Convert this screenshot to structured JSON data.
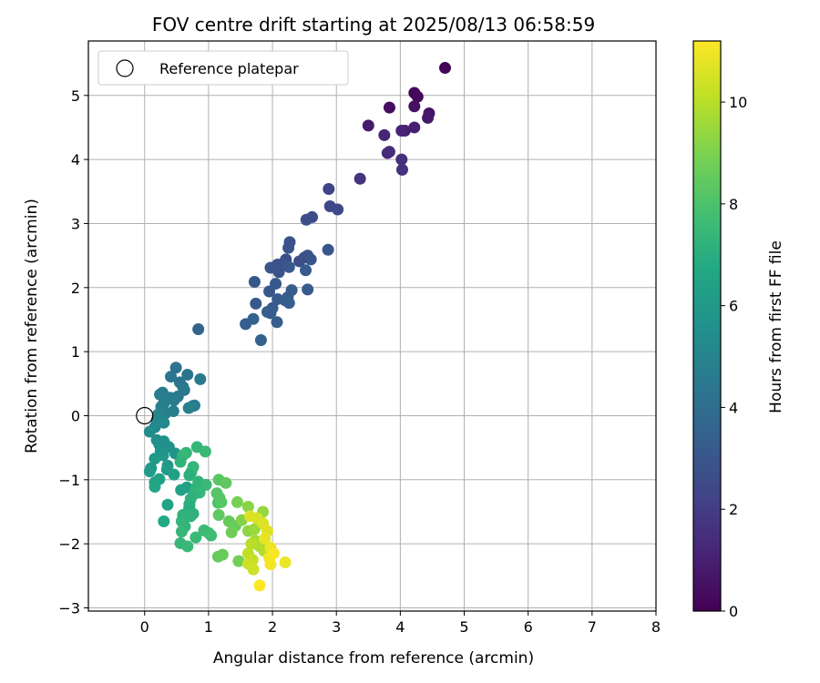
{
  "chart_data": {
    "type": "scatter",
    "title": "FOV centre drift starting at 2025/08/13 06:58:59",
    "xlabel": "Angular distance from reference (arcmin)",
    "ylabel": "Rotation from reference (arcmin)",
    "xlim": [
      -0.88,
      8.0
    ],
    "ylim": [
      -3.05,
      5.85
    ],
    "xticks": [
      0,
      1,
      2,
      3,
      4,
      5,
      6,
      7,
      8
    ],
    "yticks": [
      -3,
      -2,
      -1,
      0,
      1,
      2,
      3,
      4,
      5
    ],
    "grid": true,
    "legend": {
      "placement": "top-left",
      "entries": [
        "Reference platepar"
      ]
    },
    "reference_point": {
      "x": 0,
      "y": 0
    },
    "colorbar": {
      "label": "Hours from first FF file",
      "min": 0,
      "max": 11.2,
      "ticks": [
        0,
        2,
        4,
        6,
        8,
        10
      ],
      "colormap": "viridis"
    },
    "points": [
      {
        "x": 4.7,
        "y": 5.43,
        "c": 0.1
      },
      {
        "x": 4.22,
        "y": 5.04,
        "c": 0.2
      },
      {
        "x": 4.27,
        "y": 4.98,
        "c": 0.3
      },
      {
        "x": 3.83,
        "y": 4.81,
        "c": 0.4
      },
      {
        "x": 4.22,
        "y": 4.83,
        "c": 0.5
      },
      {
        "x": 4.45,
        "y": 4.72,
        "c": 0.6
      },
      {
        "x": 4.43,
        "y": 4.65,
        "c": 0.7
      },
      {
        "x": 3.5,
        "y": 4.53,
        "c": 0.8
      },
      {
        "x": 4.07,
        "y": 4.45,
        "c": 0.9
      },
      {
        "x": 4.22,
        "y": 4.5,
        "c": 1.0
      },
      {
        "x": 4.02,
        "y": 4.45,
        "c": 1.1
      },
      {
        "x": 3.75,
        "y": 4.38,
        "c": 1.2
      },
      {
        "x": 3.8,
        "y": 4.1,
        "c": 1.3
      },
      {
        "x": 3.83,
        "y": 4.12,
        "c": 1.4
      },
      {
        "x": 4.02,
        "y": 4.0,
        "c": 1.5
      },
      {
        "x": 4.03,
        "y": 3.84,
        "c": 1.6
      },
      {
        "x": 3.37,
        "y": 3.7,
        "c": 1.7
      },
      {
        "x": 2.88,
        "y": 3.54,
        "c": 2.3
      },
      {
        "x": 2.9,
        "y": 3.27,
        "c": 2.4
      },
      {
        "x": 3.02,
        "y": 3.22,
        "c": 2.5
      },
      {
        "x": 2.62,
        "y": 3.1,
        "c": 2.6
      },
      {
        "x": 2.53,
        "y": 3.06,
        "c": 2.7
      },
      {
        "x": 2.27,
        "y": 2.71,
        "c": 2.8
      },
      {
        "x": 2.25,
        "y": 2.62,
        "c": 2.9
      },
      {
        "x": 2.87,
        "y": 2.59,
        "c": 3.0
      },
      {
        "x": 2.55,
        "y": 2.5,
        "c": 2.8
      },
      {
        "x": 2.5,
        "y": 2.47,
        "c": 2.9
      },
      {
        "x": 2.6,
        "y": 2.44,
        "c": 3.0
      },
      {
        "x": 2.21,
        "y": 2.44,
        "c": 2.6
      },
      {
        "x": 2.42,
        "y": 2.41,
        "c": 2.7
      },
      {
        "x": 2.17,
        "y": 2.38,
        "c": 2.8
      },
      {
        "x": 2.08,
        "y": 2.36,
        "c": 2.9
      },
      {
        "x": 1.97,
        "y": 2.31,
        "c": 3.0
      },
      {
        "x": 2.26,
        "y": 2.32,
        "c": 3.1
      },
      {
        "x": 2.52,
        "y": 2.27,
        "c": 3.2
      },
      {
        "x": 2.1,
        "y": 2.24,
        "c": 2.9
      },
      {
        "x": 1.72,
        "y": 2.09,
        "c": 3.0
      },
      {
        "x": 2.05,
        "y": 2.06,
        "c": 3.1
      },
      {
        "x": 2.55,
        "y": 1.97,
        "c": 3.2
      },
      {
        "x": 2.3,
        "y": 1.96,
        "c": 3.3
      },
      {
        "x": 1.95,
        "y": 1.94,
        "c": 3.0
      },
      {
        "x": 2.24,
        "y": 1.85,
        "c": 3.1
      },
      {
        "x": 2.08,
        "y": 1.82,
        "c": 3.2
      },
      {
        "x": 2.2,
        "y": 1.8,
        "c": 3.3
      },
      {
        "x": 2.26,
        "y": 1.76,
        "c": 3.4
      },
      {
        "x": 1.74,
        "y": 1.75,
        "c": 3.1
      },
      {
        "x": 2.0,
        "y": 1.68,
        "c": 3.2
      },
      {
        "x": 1.92,
        "y": 1.62,
        "c": 3.3
      },
      {
        "x": 1.97,
        "y": 1.6,
        "c": 3.4
      },
      {
        "x": 1.7,
        "y": 1.51,
        "c": 3.5
      },
      {
        "x": 2.07,
        "y": 1.46,
        "c": 3.3
      },
      {
        "x": 1.58,
        "y": 1.43,
        "c": 3.4
      },
      {
        "x": 0.84,
        "y": 1.35,
        "c": 3.6
      },
      {
        "x": 1.82,
        "y": 1.18,
        "c": 3.5
      },
      {
        "x": 0.49,
        "y": 0.75,
        "c": 4.2
      },
      {
        "x": 0.67,
        "y": 0.64,
        "c": 4.3
      },
      {
        "x": 0.41,
        "y": 0.61,
        "c": 4.4
      },
      {
        "x": 0.87,
        "y": 0.57,
        "c": 4.5
      },
      {
        "x": 0.55,
        "y": 0.52,
        "c": 4.3
      },
      {
        "x": 0.6,
        "y": 0.45,
        "c": 4.4
      },
      {
        "x": 0.62,
        "y": 0.4,
        "c": 4.5
      },
      {
        "x": 0.28,
        "y": 0.36,
        "c": 4.6
      },
      {
        "x": 0.24,
        "y": 0.33,
        "c": 4.7
      },
      {
        "x": 0.52,
        "y": 0.3,
        "c": 4.5
      },
      {
        "x": 0.4,
        "y": 0.28,
        "c": 4.6
      },
      {
        "x": 0.46,
        "y": 0.24,
        "c": 4.7
      },
      {
        "x": 0.3,
        "y": 0.19,
        "c": 4.8
      },
      {
        "x": 0.78,
        "y": 0.16,
        "c": 4.6
      },
      {
        "x": 0.75,
        "y": 0.15,
        "c": 4.7
      },
      {
        "x": 0.26,
        "y": 0.14,
        "c": 4.8
      },
      {
        "x": 0.69,
        "y": 0.12,
        "c": 4.9
      },
      {
        "x": 0.45,
        "y": 0.07,
        "c": 4.8
      },
      {
        "x": 0.33,
        "y": 0.04,
        "c": 4.9
      },
      {
        "x": 0.21,
        "y": 0.02,
        "c": 5.0
      },
      {
        "x": 0.19,
        "y": -0.07,
        "c": 5.1
      },
      {
        "x": 0.3,
        "y": -0.11,
        "c": 5.2
      },
      {
        "x": 0.16,
        "y": -0.18,
        "c": 5.3
      },
      {
        "x": 0.08,
        "y": -0.25,
        "c": 5.4
      },
      {
        "x": 0.19,
        "y": -0.38,
        "c": 5.5
      },
      {
        "x": 0.3,
        "y": -0.4,
        "c": 5.6
      },
      {
        "x": 0.31,
        "y": -0.43,
        "c": 5.7
      },
      {
        "x": 0.23,
        "y": -0.45,
        "c": 5.5
      },
      {
        "x": 0.38,
        "y": -0.49,
        "c": 5.6
      },
      {
        "x": 0.25,
        "y": -0.55,
        "c": 5.7
      },
      {
        "x": 0.48,
        "y": -0.59,
        "c": 5.8
      },
      {
        "x": 0.29,
        "y": -0.62,
        "c": 5.9
      },
      {
        "x": 0.16,
        "y": -0.67,
        "c": 6.0
      },
      {
        "x": 0.36,
        "y": -0.78,
        "c": 5.9
      },
      {
        "x": 0.1,
        "y": -0.82,
        "c": 6.0
      },
      {
        "x": 0.35,
        "y": -0.84,
        "c": 6.1
      },
      {
        "x": 0.08,
        "y": -0.87,
        "c": 6.2
      },
      {
        "x": 0.46,
        "y": -0.92,
        "c": 6.3
      },
      {
        "x": 0.23,
        "y": -0.99,
        "c": 6.4
      },
      {
        "x": 0.16,
        "y": -1.04,
        "c": 6.5
      },
      {
        "x": 0.16,
        "y": -1.11,
        "c": 6.6
      },
      {
        "x": 0.66,
        "y": -1.12,
        "c": 6.3
      },
      {
        "x": 0.57,
        "y": -1.16,
        "c": 6.4
      },
      {
        "x": 0.36,
        "y": -1.39,
        "c": 6.5
      },
      {
        "x": 0.7,
        "y": -1.38,
        "c": 6.6
      },
      {
        "x": 0.3,
        "y": -1.65,
        "c": 6.7
      },
      {
        "x": 0.65,
        "y": -0.58,
        "c": 7.3
      },
      {
        "x": 0.6,
        "y": -0.62,
        "c": 7.4
      },
      {
        "x": 0.95,
        "y": -0.56,
        "c": 7.5
      },
      {
        "x": 0.82,
        "y": -0.49,
        "c": 7.4
      },
      {
        "x": 0.56,
        "y": -0.72,
        "c": 7.2
      },
      {
        "x": 0.76,
        "y": -0.8,
        "c": 7.3
      },
      {
        "x": 0.73,
        "y": -0.88,
        "c": 7.4
      },
      {
        "x": 0.7,
        "y": -0.93,
        "c": 7.1
      },
      {
        "x": 0.84,
        "y": -1.03,
        "c": 7.3
      },
      {
        "x": 0.96,
        "y": -1.08,
        "c": 7.5
      },
      {
        "x": 0.8,
        "y": -1.13,
        "c": 7.2
      },
      {
        "x": 0.86,
        "y": -1.2,
        "c": 7.4
      },
      {
        "x": 0.78,
        "y": -1.22,
        "c": 7.3
      },
      {
        "x": 0.72,
        "y": -1.3,
        "c": 7.1
      },
      {
        "x": 0.7,
        "y": -1.42,
        "c": 7.0
      },
      {
        "x": 0.69,
        "y": -1.48,
        "c": 7.0
      },
      {
        "x": 0.76,
        "y": -1.53,
        "c": 7.1
      },
      {
        "x": 0.72,
        "y": -1.57,
        "c": 7.2
      },
      {
        "x": 0.6,
        "y": -1.55,
        "c": 7.2
      },
      {
        "x": 0.58,
        "y": -1.65,
        "c": 7.3
      },
      {
        "x": 0.63,
        "y": -1.73,
        "c": 7.3
      },
      {
        "x": 0.93,
        "y": -1.79,
        "c": 7.6
      },
      {
        "x": 0.58,
        "y": -1.81,
        "c": 7.4
      },
      {
        "x": 1.0,
        "y": -1.83,
        "c": 7.6
      },
      {
        "x": 0.8,
        "y": -1.9,
        "c": 7.5
      },
      {
        "x": 1.04,
        "y": -1.87,
        "c": 7.7
      },
      {
        "x": 0.56,
        "y": -1.99,
        "c": 7.4
      },
      {
        "x": 0.67,
        "y": -2.04,
        "c": 7.5
      },
      {
        "x": 1.15,
        "y": -1.36,
        "c": 8.0
      },
      {
        "x": 1.17,
        "y": -1.28,
        "c": 8.1
      },
      {
        "x": 1.16,
        "y": -1.0,
        "c": 8.3
      },
      {
        "x": 1.27,
        "y": -1.05,
        "c": 8.4
      },
      {
        "x": 1.13,
        "y": -1.21,
        "c": 8.2
      },
      {
        "x": 1.2,
        "y": -1.35,
        "c": 8.3
      },
      {
        "x": 1.16,
        "y": -1.55,
        "c": 8.4
      },
      {
        "x": 1.32,
        "y": -1.65,
        "c": 8.5
      },
      {
        "x": 1.42,
        "y": -1.72,
        "c": 8.6
      },
      {
        "x": 1.36,
        "y": -1.82,
        "c": 8.7
      },
      {
        "x": 1.15,
        "y": -2.2,
        "c": 8.5
      },
      {
        "x": 1.22,
        "y": -2.17,
        "c": 8.6
      },
      {
        "x": 1.47,
        "y": -2.27,
        "c": 8.8
      },
      {
        "x": 1.45,
        "y": -1.35,
        "c": 8.9
      },
      {
        "x": 1.62,
        "y": -1.42,
        "c": 9.2
      },
      {
        "x": 1.52,
        "y": -1.63,
        "c": 9.1
      },
      {
        "x": 1.62,
        "y": -1.8,
        "c": 9.3
      },
      {
        "x": 1.72,
        "y": -1.77,
        "c": 9.5
      },
      {
        "x": 1.85,
        "y": -1.5,
        "c": 9.4
      },
      {
        "x": 1.82,
        "y": -1.68,
        "c": 9.6
      },
      {
        "x": 1.73,
        "y": -1.95,
        "c": 9.7
      },
      {
        "x": 1.8,
        "y": -2.04,
        "c": 9.8
      },
      {
        "x": 1.87,
        "y": -2.11,
        "c": 9.9
      },
      {
        "x": 1.67,
        "y": -2.0,
        "c": 10.0
      },
      {
        "x": 1.62,
        "y": -2.15,
        "c": 10.1
      },
      {
        "x": 1.69,
        "y": -2.25,
        "c": 10.2
      },
      {
        "x": 1.62,
        "y": -2.31,
        "c": 10.3
      },
      {
        "x": 1.7,
        "y": -2.4,
        "c": 10.4
      },
      {
        "x": 1.76,
        "y": -1.6,
        "c": 10.5
      },
      {
        "x": 1.85,
        "y": -1.68,
        "c": 10.6
      },
      {
        "x": 1.92,
        "y": -1.8,
        "c": 10.7
      },
      {
        "x": 1.88,
        "y": -1.92,
        "c": 10.8
      },
      {
        "x": 1.97,
        "y": -2.06,
        "c": 10.9
      },
      {
        "x": 1.95,
        "y": -2.22,
        "c": 11.0
      },
      {
        "x": 1.97,
        "y": -2.32,
        "c": 11.0
      },
      {
        "x": 2.2,
        "y": -2.29,
        "c": 10.9
      },
      {
        "x": 2.02,
        "y": -2.15,
        "c": 11.1
      },
      {
        "x": 1.8,
        "y": -2.65,
        "c": 11.2
      },
      {
        "x": 1.65,
        "y": -1.57,
        "c": 10.6
      }
    ]
  }
}
